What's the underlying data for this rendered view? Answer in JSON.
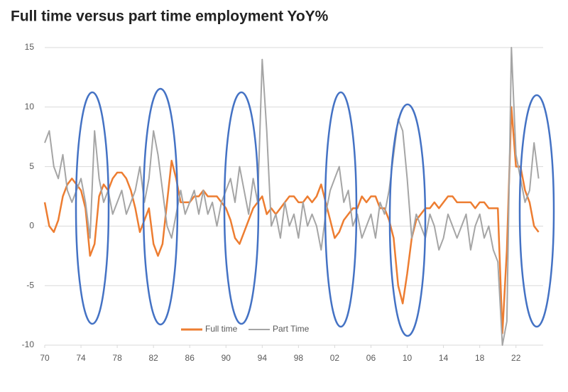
{
  "chart_data": {
    "type": "line",
    "title": "Full time versus part time employment YoY%",
    "x": [
      1970,
      1970.5,
      1971,
      1971.5,
      1972,
      1972.5,
      1973,
      1973.5,
      1974,
      1974.5,
      1975,
      1975.5,
      1976,
      1976.5,
      1977,
      1977.5,
      1978,
      1978.5,
      1979,
      1979.5,
      1980,
      1980.5,
      1981,
      1981.5,
      1982,
      1982.5,
      1983,
      1983.5,
      1984,
      1984.5,
      1985,
      1985.5,
      1986,
      1986.5,
      1987,
      1987.5,
      1988,
      1988.5,
      1989,
      1989.5,
      1990,
      1990.5,
      1991,
      1991.5,
      1992,
      1992.5,
      1993,
      1993.5,
      1994,
      1994.5,
      1995,
      1995.5,
      1996,
      1996.5,
      1997,
      1997.5,
      1998,
      1998.5,
      1999,
      1999.5,
      2000,
      2000.5,
      2001,
      2001.5,
      2002,
      2002.5,
      2003,
      2003.5,
      2004,
      2004.5,
      2005,
      2005.5,
      2006,
      2006.5,
      2007,
      2007.5,
      2008,
      2008.5,
      2009,
      2009.5,
      2010,
      2010.5,
      2011,
      2011.5,
      2012,
      2012.5,
      2013,
      2013.5,
      2014,
      2014.5,
      2015,
      2015.5,
      2016,
      2016.5,
      2017,
      2017.5,
      2018,
      2018.5,
      2019,
      2019.5,
      2020,
      2020.5,
      2021,
      2021.5,
      2022,
      2022.5,
      2023,
      2023.5,
      2024,
      2024.5
    ],
    "series": [
      {
        "name": "Full time",
        "color": "#ed7d31",
        "values": [
          2,
          0,
          -0.5,
          0.5,
          2.5,
          3.5,
          4,
          3.5,
          3,
          1.5,
          -2.5,
          -1.5,
          2.5,
          3.5,
          3,
          4,
          4.5,
          4.5,
          4,
          3,
          1.5,
          -0.5,
          0.5,
          1.5,
          -1.5,
          -2.5,
          -1.5,
          2,
          5.5,
          4,
          2,
          2,
          2,
          2.5,
          2.5,
          3,
          2.5,
          2.5,
          2.5,
          2,
          1.5,
          0.5,
          -1,
          -1.5,
          -0.5,
          0.5,
          1.5,
          2,
          2.5,
          1,
          1.5,
          1,
          1.5,
          2,
          2.5,
          2.5,
          2,
          2,
          2.5,
          2,
          2.5,
          3.5,
          2,
          0.5,
          -1,
          -0.5,
          0.5,
          1,
          1.5,
          1.5,
          2.5,
          2,
          2.5,
          2.5,
          1.5,
          1.5,
          0.5,
          -1,
          -5,
          -6.5,
          -4,
          -1,
          0.5,
          1,
          1.5,
          1.5,
          2,
          1.5,
          2,
          2.5,
          2.5,
          2,
          2,
          2,
          2,
          1.5,
          2,
          2,
          1.5,
          1.5,
          1.5,
          -9,
          -2,
          10,
          5,
          5,
          3,
          2,
          0,
          -0.5
        ]
      },
      {
        "name": "Part Time",
        "color": "#a5a5a5",
        "values": [
          7,
          8,
          5,
          4,
          6,
          3,
          2,
          3,
          4,
          2,
          -1,
          8,
          4,
          2,
          3,
          1,
          2,
          3,
          1,
          2,
          3,
          5,
          2,
          4,
          8,
          6,
          3,
          0,
          -1,
          1,
          3,
          1,
          2,
          3,
          1,
          3,
          1,
          2,
          0,
          2,
          3,
          4,
          2,
          5,
          3,
          1,
          4,
          2,
          14,
          8,
          0,
          1,
          -1,
          2,
          0,
          1,
          -1,
          2,
          0,
          1,
          0,
          -2,
          1,
          3,
          4,
          5,
          2,
          3,
          0,
          1,
          -1,
          0,
          1,
          -1,
          2,
          1,
          3,
          6,
          9,
          8,
          4,
          -1,
          1,
          0,
          -1,
          1,
          0,
          -2,
          -1,
          1,
          0,
          -1,
          0,
          1,
          -2,
          0,
          1,
          -1,
          0,
          -2,
          -3,
          -10,
          -8,
          15,
          6,
          4,
          2,
          3,
          7,
          4
        ]
      }
    ],
    "xlim": [
      1970,
      2025
    ],
    "ylim": [
      -10,
      15
    ],
    "xticks": [
      {
        "value": 1970,
        "label": "70"
      },
      {
        "value": 1974,
        "label": "74"
      },
      {
        "value": 1978,
        "label": "78"
      },
      {
        "value": 1982,
        "label": "82"
      },
      {
        "value": 1986,
        "label": "86"
      },
      {
        "value": 1990,
        "label": "90"
      },
      {
        "value": 1994,
        "label": "94"
      },
      {
        "value": 1998,
        "label": "98"
      },
      {
        "value": 2002,
        "label": "02"
      },
      {
        "value": 2006,
        "label": "06"
      },
      {
        "value": 2010,
        "label": "10"
      },
      {
        "value": 2014,
        "label": "14"
      },
      {
        "value": 2018,
        "label": "18"
      },
      {
        "value": 2022,
        "label": "22"
      }
    ],
    "yticks": [
      15,
      10,
      5,
      0,
      -5,
      -10
    ],
    "grid": true
  }
}
